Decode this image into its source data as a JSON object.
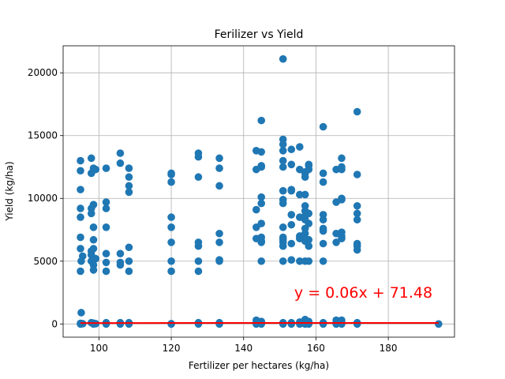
{
  "chart_data": {
    "type": "scatter",
    "title": "Ferilizer vs Yield",
    "xlabel": "Fertilizer per hectares (kg/ha)",
    "ylabel": "Yield (kg/ha)",
    "xlim": [
      90.1,
      198.3
    ],
    "ylim": [
      -1050,
      22150
    ],
    "xticks": [
      100,
      120,
      140,
      160,
      180
    ],
    "yticks": [
      0,
      5000,
      10000,
      15000,
      20000
    ],
    "xtick_labels": [
      "100",
      "120",
      "140",
      "160",
      "180"
    ],
    "ytick_labels": [
      "0",
      "5000",
      "10000",
      "15000",
      "20000"
    ],
    "grid": true,
    "point_color": "#1f77b4",
    "line_color": "#ff0000",
    "annotation": {
      "text": "y = 0.06x + 71.48",
      "x": 154.0,
      "y": 2100,
      "color": "#ff0000"
    },
    "regression": {
      "slope": 0.06,
      "intercept": 71.48,
      "x_range": [
        94.9,
        193.9
      ]
    },
    "points": [
      [
        94.9,
        12200
      ],
      [
        94.9,
        13000
      ],
      [
        94.9,
        10700
      ],
      [
        94.9,
        9200
      ],
      [
        94.9,
        8500
      ],
      [
        94.9,
        6900
      ],
      [
        94.9,
        6000
      ],
      [
        95.5,
        5400
      ],
      [
        95.1,
        5000
      ],
      [
        94.9,
        4200
      ],
      [
        95.1,
        900
      ],
      [
        94.9,
        50
      ],
      [
        95.5,
        20
      ],
      [
        94.9,
        0
      ],
      [
        97.9,
        13200
      ],
      [
        97.9,
        12000
      ],
      [
        98.5,
        12400
      ],
      [
        99.1,
        12300
      ],
      [
        97.9,
        9200
      ],
      [
        98.5,
        9500
      ],
      [
        97.9,
        8800
      ],
      [
        98.5,
        7700
      ],
      [
        98.5,
        6700
      ],
      [
        98.5,
        6000
      ],
      [
        97.9,
        5800
      ],
      [
        97.9,
        5500
      ],
      [
        97.9,
        5000
      ],
      [
        98.5,
        4700
      ],
      [
        98.5,
        4300
      ],
      [
        99.1,
        5200
      ],
      [
        97.9,
        100
      ],
      [
        98.5,
        60
      ],
      [
        99.1,
        20
      ],
      [
        98.5,
        0
      ],
      [
        102.0,
        12400
      ],
      [
        102.0,
        9700
      ],
      [
        102.0,
        9200
      ],
      [
        102.0,
        7700
      ],
      [
        102.0,
        5600
      ],
      [
        102.0,
        4900
      ],
      [
        102.0,
        4200
      ],
      [
        102.0,
        100
      ],
      [
        102.0,
        0
      ],
      [
        105.9,
        13600
      ],
      [
        105.9,
        12800
      ],
      [
        105.9,
        5600
      ],
      [
        105.9,
        4900
      ],
      [
        105.9,
        4700
      ],
      [
        105.9,
        100
      ],
      [
        105.9,
        0
      ],
      [
        108.3,
        12400
      ],
      [
        108.3,
        11700
      ],
      [
        108.3,
        11000
      ],
      [
        108.3,
        10500
      ],
      [
        108.3,
        6100
      ],
      [
        108.3,
        5000
      ],
      [
        108.3,
        4200
      ],
      [
        108.3,
        100
      ],
      [
        108.3,
        0
      ],
      [
        120.0,
        12000
      ],
      [
        120.0,
        11900
      ],
      [
        120.0,
        11300
      ],
      [
        120.0,
        8500
      ],
      [
        120.0,
        7700
      ],
      [
        120.0,
        6500
      ],
      [
        120.0,
        5000
      ],
      [
        120.0,
        4200
      ],
      [
        120.0,
        20
      ],
      [
        120.0,
        0
      ],
      [
        127.5,
        13600
      ],
      [
        127.5,
        13300
      ],
      [
        127.5,
        11700
      ],
      [
        127.5,
        6500
      ],
      [
        127.5,
        6200
      ],
      [
        127.5,
        5000
      ],
      [
        127.5,
        4200
      ],
      [
        127.5,
        100
      ],
      [
        127.5,
        0
      ],
      [
        133.3,
        13200
      ],
      [
        133.3,
        12400
      ],
      [
        133.3,
        11000
      ],
      [
        133.3,
        7200
      ],
      [
        133.3,
        6500
      ],
      [
        133.3,
        5100
      ],
      [
        133.3,
        5000
      ],
      [
        133.3,
        100
      ],
      [
        133.3,
        0
      ],
      [
        143.5,
        13800
      ],
      [
        143.5,
        12300
      ],
      [
        143.5,
        9100
      ],
      [
        143.5,
        7700
      ],
      [
        143.5,
        6800
      ],
      [
        143.5,
        300
      ],
      [
        143.5,
        100
      ],
      [
        143.5,
        0
      ],
      [
        144.9,
        16200
      ],
      [
        144.9,
        13700
      ],
      [
        144.9,
        12600
      ],
      [
        144.9,
        12500
      ],
      [
        144.9,
        10100
      ],
      [
        144.9,
        9600
      ],
      [
        144.9,
        8000
      ],
      [
        144.9,
        6900
      ],
      [
        144.9,
        6600
      ],
      [
        144.9,
        6500
      ],
      [
        144.9,
        5000
      ],
      [
        144.9,
        200
      ],
      [
        144.9,
        100
      ],
      [
        144.9,
        0
      ],
      [
        150.9,
        21100
      ],
      [
        150.9,
        14700
      ],
      [
        150.9,
        14300
      ],
      [
        150.9,
        13800
      ],
      [
        150.9,
        13000
      ],
      [
        150.9,
        12500
      ],
      [
        150.9,
        10600
      ],
      [
        150.9,
        9900
      ],
      [
        150.9,
        9600
      ],
      [
        150.9,
        7700
      ],
      [
        150.9,
        6900
      ],
      [
        150.9,
        6700
      ],
      [
        150.9,
        6500
      ],
      [
        150.9,
        6200
      ],
      [
        150.9,
        5000
      ],
      [
        150.9,
        100
      ],
      [
        150.9,
        0
      ],
      [
        153.2,
        13900
      ],
      [
        153.2,
        12700
      ],
      [
        153.2,
        10700
      ],
      [
        153.2,
        10600
      ],
      [
        153.2,
        8700
      ],
      [
        153.2,
        7900
      ],
      [
        153.2,
        6400
      ],
      [
        153.2,
        5100
      ],
      [
        153.2,
        100
      ],
      [
        153.2,
        0
      ],
      [
        155.5,
        14100
      ],
      [
        155.5,
        12300
      ],
      [
        155.5,
        10300
      ],
      [
        155.5,
        8500
      ],
      [
        155.5,
        7000
      ],
      [
        155.5,
        6800
      ],
      [
        155.5,
        5000
      ],
      [
        155.5,
        150
      ],
      [
        155.5,
        0
      ],
      [
        157.0,
        12100
      ],
      [
        157.0,
        12000
      ],
      [
        157.0,
        11700
      ],
      [
        157.0,
        10300
      ],
      [
        157.0,
        9400
      ],
      [
        157.0,
        9000
      ],
      [
        157.0,
        8600
      ],
      [
        157.0,
        8300
      ],
      [
        157.0,
        7600
      ],
      [
        157.0,
        7200
      ],
      [
        157.0,
        6800
      ],
      [
        157.0,
        6600
      ],
      [
        157.0,
        5000
      ],
      [
        157.0,
        350
      ],
      [
        157.0,
        200
      ],
      [
        157.0,
        0
      ],
      [
        158.0,
        12700
      ],
      [
        158.0,
        12600
      ],
      [
        158.0,
        12300
      ],
      [
        158.0,
        8800
      ],
      [
        158.0,
        8000
      ],
      [
        158.0,
        6700
      ],
      [
        158.0,
        6200
      ],
      [
        158.0,
        5000
      ],
      [
        158.0,
        200
      ],
      [
        158.0,
        0
      ],
      [
        162.0,
        15700
      ],
      [
        162.0,
        12000
      ],
      [
        162.0,
        11300
      ],
      [
        162.0,
        8700
      ],
      [
        162.0,
        8300
      ],
      [
        162.0,
        7600
      ],
      [
        162.0,
        7400
      ],
      [
        162.0,
        6400
      ],
      [
        162.0,
        5000
      ],
      [
        162.0,
        100
      ],
      [
        162.0,
        0
      ],
      [
        165.6,
        12300
      ],
      [
        165.6,
        9700
      ],
      [
        165.6,
        7200
      ],
      [
        165.6,
        6500
      ],
      [
        165.6,
        300
      ],
      [
        165.6,
        100
      ],
      [
        165.6,
        0
      ],
      [
        167.1,
        13200
      ],
      [
        167.1,
        12500
      ],
      [
        167.1,
        12300
      ],
      [
        167.1,
        10000
      ],
      [
        167.1,
        9900
      ],
      [
        167.1,
        7300
      ],
      [
        167.1,
        7000
      ],
      [
        167.1,
        6800
      ],
      [
        167.1,
        300
      ],
      [
        167.1,
        100
      ],
      [
        167.1,
        0
      ],
      [
        171.4,
        16900
      ],
      [
        171.4,
        11900
      ],
      [
        171.4,
        9400
      ],
      [
        171.4,
        8800
      ],
      [
        171.4,
        8300
      ],
      [
        171.4,
        6400
      ],
      [
        171.4,
        6200
      ],
      [
        171.4,
        5900
      ],
      [
        171.4,
        100
      ],
      [
        171.4,
        0
      ],
      [
        193.9,
        0
      ]
    ]
  }
}
